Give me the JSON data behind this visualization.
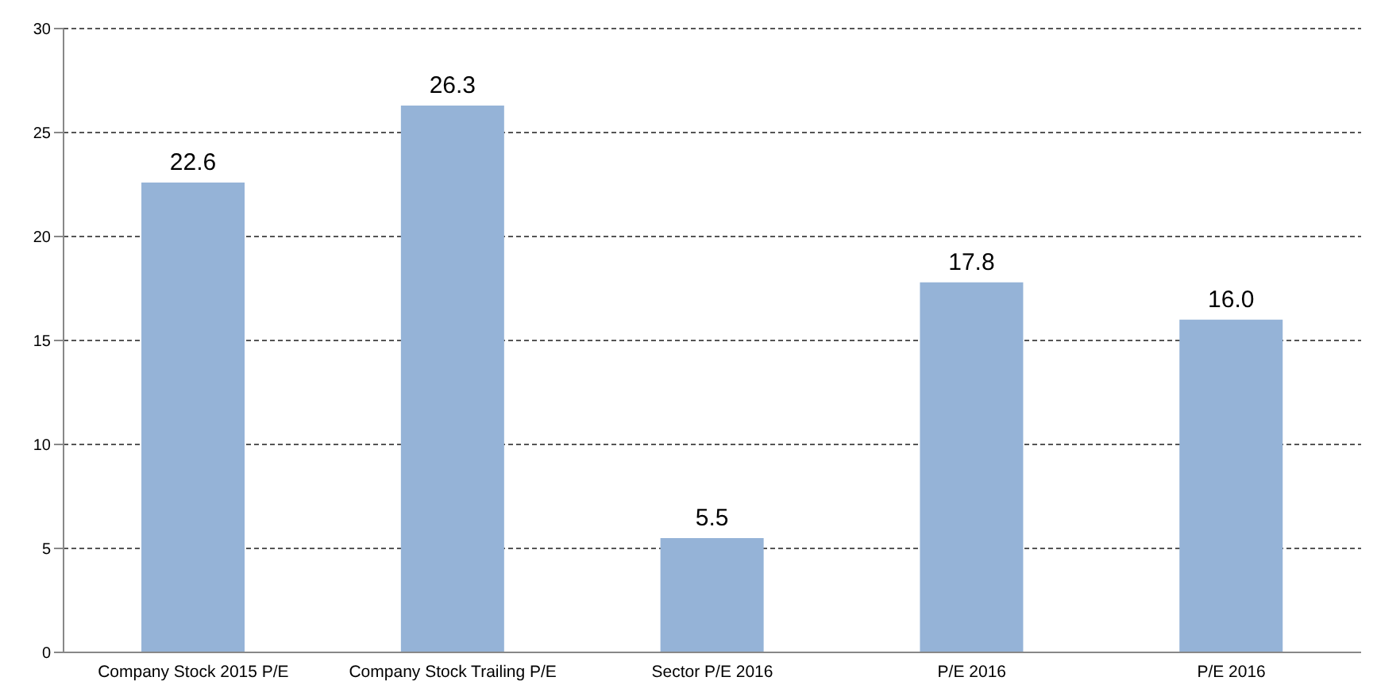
{
  "chart_data": {
    "type": "bar",
    "categories": [
      "Company Stock 2015 P/E",
      "Company Stock Trailing  P/E",
      "Sector P/E 2016",
      "P/E 2016",
      "P/E 2016"
    ],
    "values": [
      22.6,
      26.3,
      5.5,
      17.8,
      16.0
    ],
    "value_labels": [
      "22.6",
      "26.3",
      "5.5",
      "17.8",
      "16.0"
    ],
    "color": "#95b3d7",
    "ylim": [
      0,
      30
    ],
    "yticks": [
      0,
      5,
      10,
      15,
      20,
      25,
      30
    ],
    "grid": "y"
  }
}
